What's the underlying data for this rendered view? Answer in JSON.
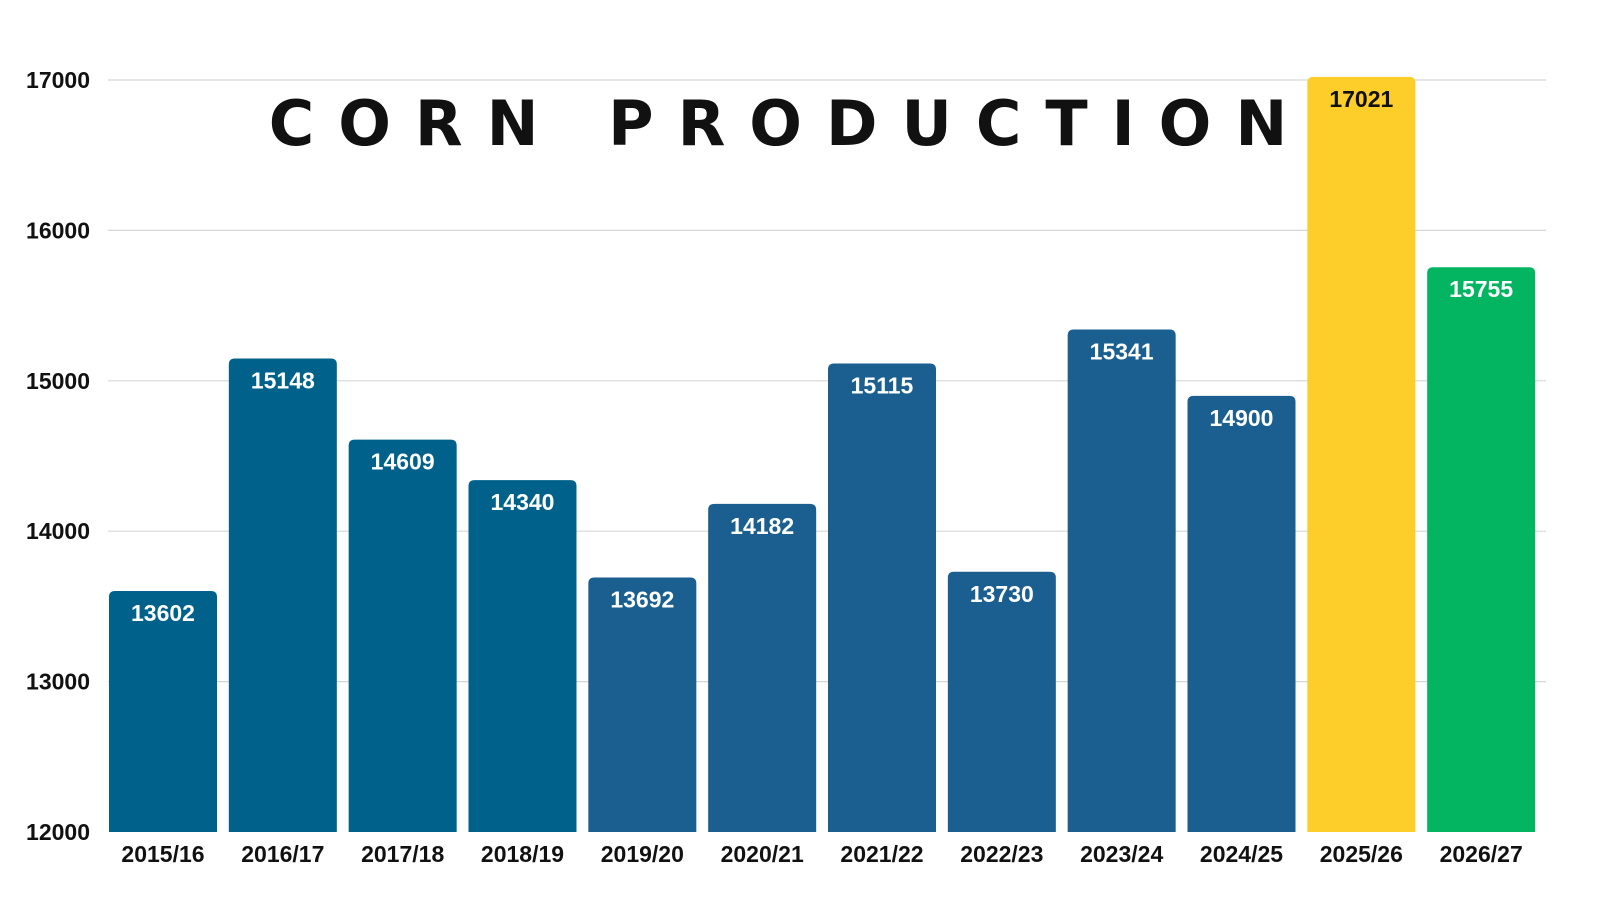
{
  "chart_data": {
    "type": "bar",
    "title": "CORN PRODUCTION",
    "xlabel": "",
    "ylabel": "",
    "categories": [
      "2015/16",
      "2016/17",
      "2017/18",
      "2018/19",
      "2019/20",
      "2020/21",
      "2021/22",
      "2022/23",
      "2023/24",
      "2024/25",
      "2025/26",
      "2026/27"
    ],
    "values": [
      13602,
      15148,
      14609,
      14340,
      13692,
      14182,
      15115,
      13730,
      15341,
      14900,
      17021,
      15755
    ],
    "ylim": [
      12000,
      17000
    ],
    "yticks": [
      12000,
      13000,
      14000,
      15000,
      16000,
      17000
    ],
    "grid": true,
    "legend": "none",
    "bar_colors": [
      "#00628a",
      "#00628a",
      "#00628a",
      "#00628a",
      "#1a5f8f",
      "#1a5f8f",
      "#1a5f8f",
      "#1a5f8f",
      "#1a5f8f",
      "#1a5f8f",
      "#fdcd2a",
      "#03b560"
    ],
    "label_colors": [
      "#ffffff",
      "#ffffff",
      "#ffffff",
      "#ffffff",
      "#ffffff",
      "#ffffff",
      "#ffffff",
      "#ffffff",
      "#ffffff",
      "#ffffff",
      "#111111",
      "#ffffff"
    ]
  }
}
